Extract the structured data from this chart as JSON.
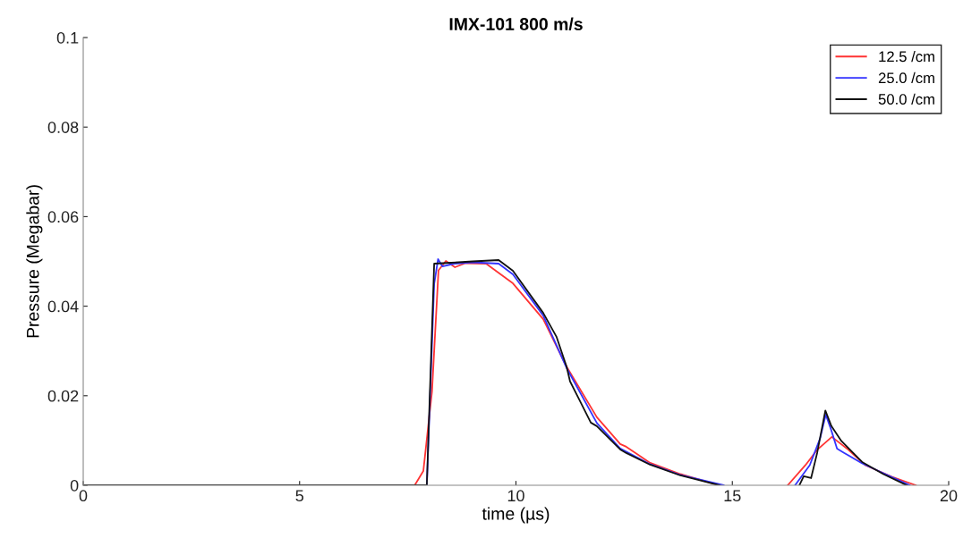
{
  "chart_data": {
    "type": "line",
    "title": "IMX-101 800 m/s",
    "xlabel": "time (µs)",
    "ylabel": "Pressure (Megabar)",
    "xlim": [
      0,
      20
    ],
    "xticks": [
      0,
      5,
      10,
      15,
      20
    ],
    "ylim": [
      0,
      0.1
    ],
    "yticks": [
      0,
      0.02,
      0.04,
      0.06,
      0.08,
      0.1
    ],
    "grid": false,
    "legend": "top right",
    "line_style": "solid",
    "series": [
      {
        "name": "12.5 /cm",
        "color": "#ff3333",
        "x": [
          0,
          7.66,
          7.86,
          8.06,
          8.21,
          8.38,
          8.59,
          8.83,
          9.31,
          9.45,
          9.93,
          10.63,
          11.17,
          11.87,
          12.41,
          12.55,
          13.1,
          13.8,
          14.7,
          15.5,
          16.28,
          16.69,
          16.96,
          17.3,
          17.65,
          18.07,
          18.69,
          19.24
        ],
        "values": [
          0,
          0,
          0.0032,
          0.021,
          0.048,
          0.0501,
          0.0487,
          0.0496,
          0.0495,
          0.0485,
          0.0451,
          0.0371,
          0.0265,
          0.0152,
          0.0092,
          0.0086,
          0.005,
          0.0025,
          0,
          null,
          0,
          0.0045,
          0.0079,
          0.0108,
          0.0082,
          0.0045,
          0.0019,
          0
        ]
      },
      {
        "name": "25.0 /cm",
        "color": "#3333ff",
        "x": [
          0,
          7.94,
          8.11,
          8.2,
          8.3,
          8.58,
          9.0,
          9.6,
          9.93,
          10.63,
          11.17,
          11.87,
          12.41,
          13.1,
          13.8,
          14.8,
          15.5,
          16.45,
          16.79,
          17.03,
          17.16,
          17.28,
          17.42,
          17.59,
          18.0,
          18.49,
          19.1
        ],
        "values": [
          0,
          0,
          0.045,
          0.0505,
          0.0489,
          0.0495,
          0.0498,
          0.0495,
          0.0471,
          0.0379,
          0.0262,
          0.0139,
          0.0082,
          0.0047,
          0.0023,
          0,
          null,
          0,
          0.0045,
          0.0105,
          0.0158,
          0.0125,
          0.0082,
          0.0072,
          0.0049,
          0.0027,
          0
        ]
      },
      {
        "name": "50.0 /cm",
        "color": "#111111",
        "x": [
          0,
          7.94,
          8.11,
          8.5,
          9.0,
          9.6,
          9.93,
          10.63,
          10.94,
          11.17,
          11.25,
          11.46,
          11.73,
          11.87,
          12.41,
          12.55,
          13.1,
          13.8,
          14.7,
          15.5,
          16.55,
          16.65,
          16.82,
          16.96,
          17.15,
          17.29,
          17.52,
          18.0,
          18.49,
          19.03
        ],
        "values": [
          0,
          0,
          0.0495,
          0.0497,
          0.05,
          0.0503,
          0.0479,
          0.0385,
          0.0331,
          0.0265,
          0.0232,
          0.0192,
          0.014,
          0.0132,
          0.008,
          0.0072,
          0.0046,
          0.0022,
          0,
          null,
          0,
          0.002,
          0.0016,
          0.0072,
          0.0167,
          0.0132,
          0.0099,
          0.0052,
          0.0025,
          0
        ]
      }
    ]
  }
}
